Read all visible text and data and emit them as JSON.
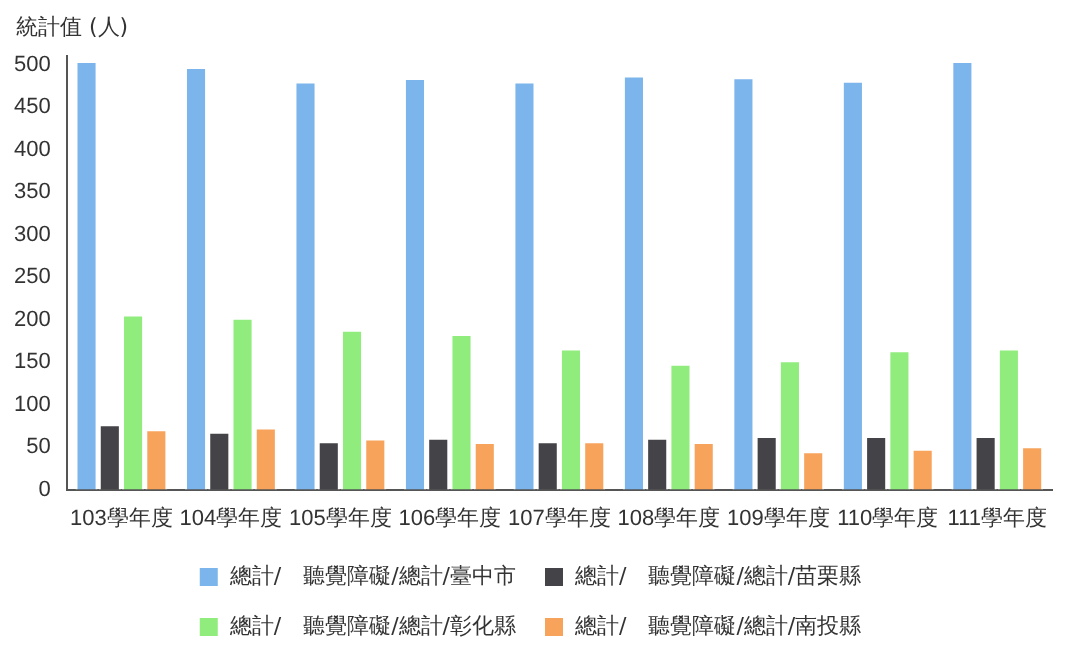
{
  "chart_data": {
    "type": "bar",
    "ylabel": "統計值 (人)",
    "categories": [
      "103學年度",
      "104學年度",
      "105學年度",
      "106學年度",
      "107學年度",
      "108學年度",
      "109學年度",
      "110學年度",
      "111學年度"
    ],
    "series": [
      {
        "name": "總計/　聽覺障礙/總計/臺中市",
        "color": "#7cb5ec",
        "values": [
          504,
          497,
          480,
          484,
          480,
          487,
          485,
          481,
          504
        ]
      },
      {
        "name": "總計/　聽覺障礙/總計/苗栗縣",
        "color": "#434348",
        "values": [
          77,
          68,
          57,
          61,
          57,
          61,
          63,
          63,
          63
        ]
      },
      {
        "name": "總計/　聽覺障礙/總計/彰化縣",
        "color": "#90ed7d",
        "values": [
          206,
          202,
          188,
          183,
          166,
          148,
          152,
          164,
          166
        ]
      },
      {
        "name": "總計/　聽覺障礙/總計/南投縣",
        "color": "#f7a35c",
        "values": [
          71,
          73,
          60,
          56,
          57,
          56,
          45,
          48,
          51
        ]
      }
    ],
    "ylim": [
      0,
      510
    ],
    "yticks": [
      0,
      50,
      100,
      150,
      200,
      250,
      300,
      350,
      400,
      450,
      500
    ],
    "grid": false,
    "legend": "bottom"
  }
}
